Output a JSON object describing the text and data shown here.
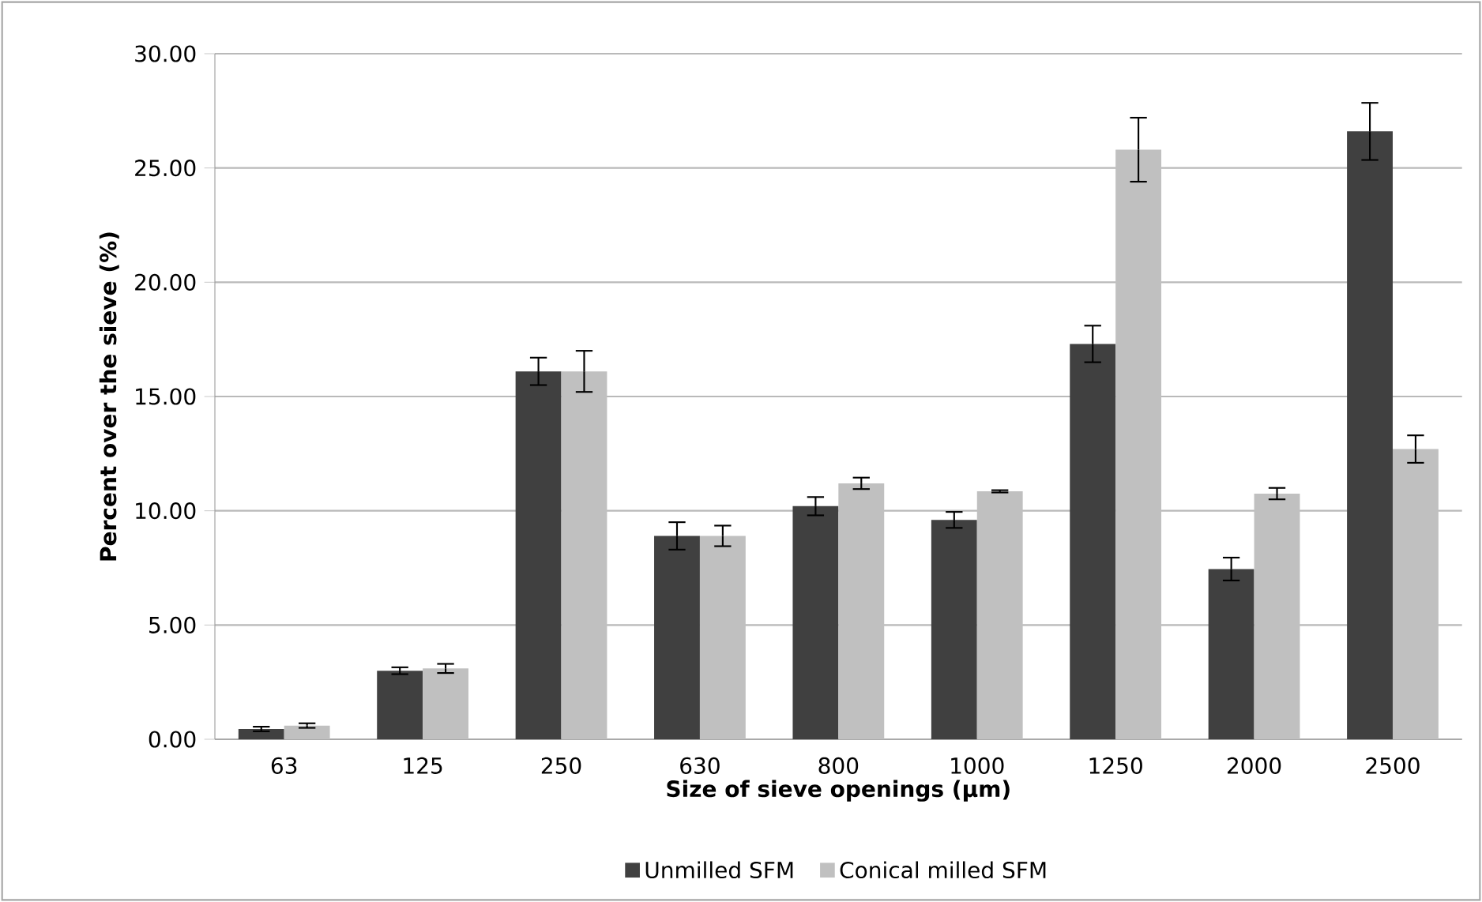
{
  "chart_data": {
    "type": "bar",
    "xlabel": "Size of sieve openings (µm)",
    "ylabel": "Percent over the sieve (%)",
    "categories": [
      "63",
      "125",
      "250",
      "630",
      "800",
      "1000",
      "1250",
      "2000",
      "2500"
    ],
    "series": [
      {
        "name": "Unmilled SFM",
        "color": "#404040",
        "values": [
          0.45,
          3.0,
          16.1,
          8.9,
          10.2,
          9.6,
          17.3,
          7.45,
          26.6
        ],
        "errors": [
          0.1,
          0.15,
          0.6,
          0.6,
          0.4,
          0.35,
          0.8,
          0.5,
          1.25
        ]
      },
      {
        "name": "Conical milled SFM",
        "color": "#c0c0c0",
        "values": [
          0.6,
          3.1,
          16.1,
          8.9,
          11.2,
          10.85,
          25.8,
          10.75,
          12.7
        ],
        "errors": [
          0.1,
          0.2,
          0.9,
          0.45,
          0.25,
          0.05,
          1.4,
          0.25,
          0.6
        ]
      }
    ],
    "ylim": [
      0,
      30
    ],
    "yticks": [
      {
        "value": 0,
        "label": "0.00"
      },
      {
        "value": 5,
        "label": "5.00"
      },
      {
        "value": 10,
        "label": "10.00"
      },
      {
        "value": 15,
        "label": "15.00"
      },
      {
        "value": 20,
        "label": "20.00"
      },
      {
        "value": 25,
        "label": "25.00"
      },
      {
        "value": 30,
        "label": "30.00"
      }
    ],
    "grid": "y",
    "legend": "bottom"
  }
}
